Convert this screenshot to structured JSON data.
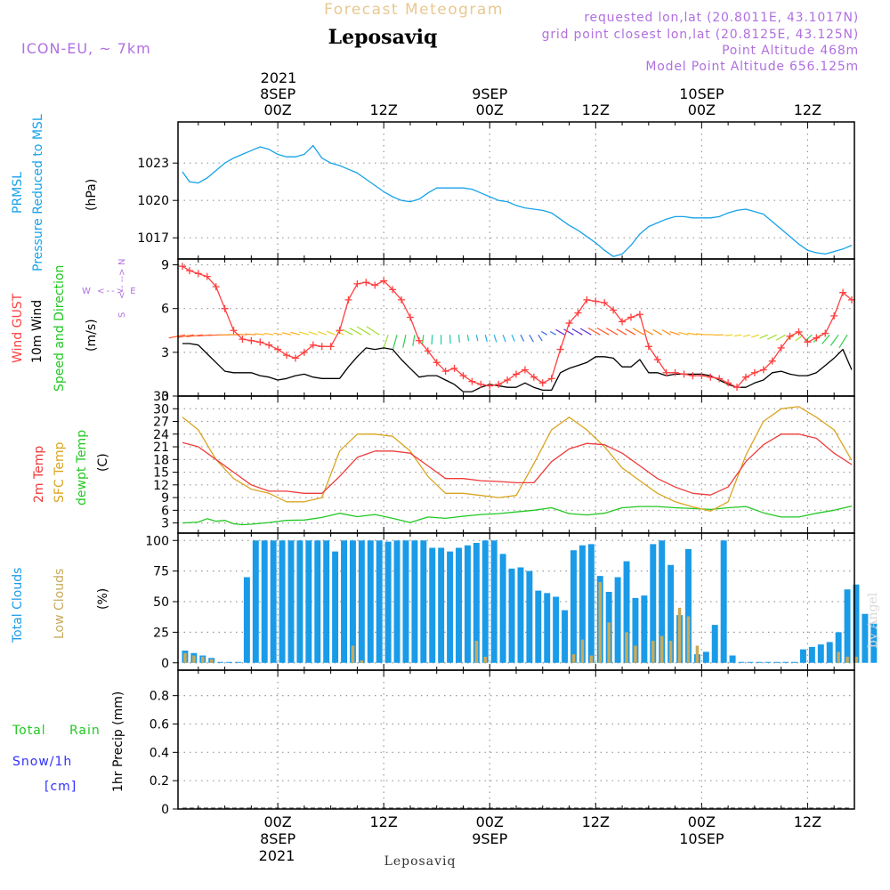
{
  "header": {
    "title": "Forecast Meteogram",
    "location": "Leposaviq",
    "model": "ICON-EU, ~ 7km",
    "requested": "requested lon,lat (20.8011E, 43.1017N)",
    "grid_point": "grid point closest lon,lat (20.8125E, 43.125N)",
    "point_altitude": "Point Altitude 468m",
    "model_altitude": "Model Point Altitude 656.125m",
    "watermark": "by Angel",
    "footer_location": "Leposaviq"
  },
  "time_axis": {
    "top_year": "2021",
    "bottom_year": "2021",
    "ticks": [
      {
        "hour": 0,
        "label": "00Z",
        "date": "8SEP"
      },
      {
        "hour": 12,
        "label": "12Z",
        "date": ""
      },
      {
        "hour": 24,
        "label": "00Z",
        "date": "9SEP"
      },
      {
        "hour": 36,
        "label": "12Z",
        "date": ""
      },
      {
        "hour": 48,
        "label": "00Z",
        "date": "10SEP"
      },
      {
        "hour": 60,
        "label": "12Z",
        "date": ""
      }
    ],
    "range_hours": [
      -11.3,
      65.3
    ]
  },
  "panels": {
    "pressure": {
      "label_1": "PRMSL",
      "label_2": "Pressure Reduced to MSL",
      "unit": "(hPa)",
      "color": "#17a2e8"
    },
    "wind": {
      "label_gust": "Wind GUST",
      "label_wind": "10m Wind",
      "label_dir": "Speed and Direction",
      "unit": "(m/s)",
      "compass_n": "N",
      "compass_we": "W <--> E",
      "compass_s": "S",
      "gust_color": "#ff4040",
      "wind_color": "#000000"
    },
    "temperature": {
      "label_t2m": "2m Temp",
      "label_sfc": "SFC Temp",
      "label_dew": "dewpt Temp",
      "unit": "(C)",
      "t2m_color": "#ee3b3b",
      "sfc_color": "#daa520",
      "dew_color": "#22c822"
    },
    "clouds": {
      "label_total": "Total Clouds",
      "label_low": "Low Clouds",
      "unit": "(%)",
      "total_color": "#1a9be8",
      "low_color": "#c8aa5a"
    },
    "precip": {
      "label_total": "Total",
      "label_rain": "Rain",
      "label_snow": "Snow/1h",
      "label_cm": "[cm]",
      "axis_label": "1hr Precip (mm)",
      "total_color": "#22c822",
      "snow_color": "#3030ff"
    }
  },
  "chart_data": [
    {
      "type": "line",
      "panel": "pressure",
      "ylabel": "(hPa)",
      "ylim": [
        1015.3,
        1026.3
      ],
      "yticks": [
        1017,
        1020,
        1023
      ],
      "grid": true,
      "series": [
        {
          "name": "PRMSL",
          "x": [
            -10.8,
            -10,
            -9,
            -8,
            -7,
            -6,
            -5,
            -4,
            -3,
            -2,
            -1,
            0,
            1,
            2,
            3,
            4,
            5,
            6,
            7,
            8,
            9,
            10,
            11,
            12,
            13,
            14,
            15,
            16,
            17,
            18,
            19,
            20,
            21,
            22,
            23,
            24,
            25,
            26,
            27,
            28,
            29,
            30,
            31,
            32,
            33,
            34,
            35,
            36,
            37,
            38,
            39,
            40,
            41,
            42,
            43,
            44,
            45,
            46,
            47,
            48,
            49,
            50,
            51,
            52,
            53,
            54,
            55,
            56,
            57,
            58,
            59,
            60,
            61,
            62,
            63,
            64,
            65
          ],
          "y": [
            1022.3,
            1021.5,
            1021.4,
            1021.8,
            1022.4,
            1023.0,
            1023.4,
            1023.7,
            1024.0,
            1024.3,
            1024.1,
            1023.7,
            1023.5,
            1023.5,
            1023.7,
            1024.4,
            1023.4,
            1023.0,
            1022.8,
            1022.5,
            1022.2,
            1021.7,
            1021.2,
            1020.7,
            1020.3,
            1020.0,
            1019.9,
            1020.1,
            1020.6,
            1021.0,
            1021.0,
            1021.0,
            1021.0,
            1020.9,
            1020.6,
            1020.3,
            1020.0,
            1019.9,
            1019.6,
            1019.4,
            1019.3,
            1019.2,
            1019.0,
            1018.5,
            1018.0,
            1017.6,
            1017.1,
            1016.6,
            1016.0,
            1015.5,
            1015.7,
            1016.4,
            1017.3,
            1017.9,
            1018.2,
            1018.5,
            1018.7,
            1018.7,
            1018.6,
            1018.6,
            1018.6,
            1018.7,
            1019.0,
            1019.2,
            1019.3,
            1019.1,
            1018.9,
            1018.3,
            1017.7,
            1017.1,
            1016.5,
            1016.0,
            1015.8,
            1015.7,
            1015.9,
            1016.1,
            1016.4
          ]
        }
      ]
    },
    {
      "type": "line",
      "panel": "wind",
      "ylabel": "(m/s)",
      "ylim": [
        0,
        9.4
      ],
      "yticks": [
        0,
        3,
        6,
        9
      ],
      "grid": true,
      "series": [
        {
          "name": "Wind GUST",
          "x": [
            -10.8,
            -10,
            -9,
            -8,
            -7,
            -6,
            -5,
            -4,
            -3,
            -2,
            -1,
            0,
            1,
            2,
            3,
            4,
            5,
            6,
            7,
            8,
            9,
            10,
            11,
            12,
            13,
            14,
            15,
            16,
            17,
            18,
            19,
            20,
            21,
            22,
            23,
            24,
            25,
            26,
            27,
            28,
            29,
            30,
            31,
            32,
            33,
            34,
            35,
            36,
            37,
            38,
            39,
            40,
            41,
            42,
            43,
            44,
            45,
            46,
            47,
            48,
            49,
            50,
            51,
            52,
            53,
            54,
            55,
            56,
            57,
            58,
            59,
            60,
            61,
            62,
            63,
            64,
            65
          ],
          "y": [
            8.9,
            8.6,
            8.4,
            8.2,
            7.5,
            6.0,
            4.5,
            3.9,
            3.8,
            3.7,
            3.5,
            3.2,
            2.8,
            2.6,
            3.0,
            3.5,
            3.4,
            3.4,
            4.5,
            6.6,
            7.7,
            7.8,
            7.6,
            7.9,
            7.3,
            6.6,
            5.4,
            3.8,
            3.1,
            2.3,
            1.7,
            1.9,
            1.4,
            1.0,
            0.8,
            0.7,
            0.8,
            1.1,
            1.5,
            1.8,
            1.3,
            0.9,
            1.2,
            3.2,
            5.0,
            5.7,
            6.6,
            6.5,
            6.4,
            5.9,
            5.1,
            5.4,
            5.6,
            3.4,
            2.5,
            1.6,
            1.6,
            1.5,
            1.4,
            1.4,
            1.3,
            1.2,
            0.9,
            0.6,
            1.3,
            1.6,
            1.8,
            2.4,
            3.3,
            4.1,
            4.4,
            3.7,
            4.0,
            4.3,
            5.5,
            7.1,
            6.6
          ]
        },
        {
          "name": "10m Wind",
          "x": [
            -10.8,
            -10,
            -9,
            -8,
            -7,
            -6,
            -5,
            -4,
            -3,
            -2,
            -1,
            0,
            1,
            2,
            3,
            4,
            5,
            6,
            7,
            8,
            9,
            10,
            11,
            12,
            13,
            14,
            15,
            16,
            17,
            18,
            19,
            20,
            21,
            22,
            23,
            24,
            25,
            26,
            27,
            28,
            29,
            30,
            31,
            32,
            33,
            34,
            35,
            36,
            37,
            38,
            39,
            40,
            41,
            42,
            43,
            44,
            45,
            46,
            47,
            48,
            49,
            50,
            51,
            52,
            53,
            54,
            55,
            56,
            57,
            58,
            59,
            60,
            61,
            62,
            63,
            64,
            65
          ],
          "y": [
            3.6,
            3.6,
            3.5,
            2.9,
            2.3,
            1.7,
            1.6,
            1.6,
            1.6,
            1.4,
            1.3,
            1.1,
            1.2,
            1.4,
            1.5,
            1.3,
            1.2,
            1.2,
            1.2,
            2.0,
            2.7,
            3.3,
            3.2,
            3.3,
            3.2,
            2.5,
            1.9,
            1.3,
            1.4,
            1.4,
            1.1,
            0.8,
            0.3,
            0.3,
            0.6,
            0.8,
            0.7,
            0.6,
            0.6,
            0.9,
            0.6,
            0.4,
            0.4,
            1.6,
            1.9,
            2.1,
            2.3,
            2.7,
            2.7,
            2.6,
            2.0,
            2.0,
            2.5,
            1.6,
            1.6,
            1.4,
            1.5,
            1.5,
            1.5,
            1.5,
            1.4,
            1.1,
            0.8,
            0.6,
            0.6,
            0.9,
            1.1,
            1.6,
            1.7,
            1.5,
            1.4,
            1.4,
            1.6,
            2.1,
            2.6,
            3.2,
            1.8
          ]
        }
      ]
    },
    {
      "type": "line",
      "panel": "temperature",
      "ylabel": "(C)",
      "ylim": [
        0.6,
        33
      ],
      "yticks": [
        3,
        6,
        9,
        12,
        15,
        18,
        21,
        24,
        27,
        30,
        33
      ],
      "grid": true,
      "series": [
        {
          "name": "2m Temp",
          "x": [
            -10.8,
            -9,
            -7,
            -5,
            -3,
            -1,
            1,
            3,
            5,
            7,
            9,
            11,
            13,
            15,
            17,
            19,
            21,
            23,
            25,
            27,
            29,
            31,
            33,
            35,
            37,
            39,
            41,
            43,
            45,
            47,
            49,
            51,
            53,
            55,
            57,
            59,
            61,
            63,
            65
          ],
          "y": [
            22,
            21,
            18,
            15,
            12,
            10.5,
            10.5,
            10,
            10,
            14,
            18.5,
            20,
            20,
            19.5,
            16.5,
            13.5,
            13.5,
            13,
            12.8,
            12.5,
            12.5,
            17.5,
            20.5,
            21.8,
            21.5,
            19.5,
            16.5,
            13.5,
            11.5,
            10,
            9.6,
            11.5,
            17.5,
            21.5,
            24,
            24,
            23,
            19.5,
            16.8
          ]
        },
        {
          "name": "SFC Temp",
          "x": [
            -10.8,
            -9,
            -7,
            -5,
            -3,
            -1,
            1,
            3,
            5,
            7,
            9,
            11,
            13,
            15,
            17,
            19,
            21,
            23,
            25,
            27,
            29,
            31,
            33,
            35,
            37,
            39,
            41,
            43,
            45,
            47,
            49,
            51,
            53,
            55,
            57,
            59,
            61,
            63,
            65
          ],
          "y": [
            28,
            25,
            18,
            13.5,
            11,
            10,
            8,
            8,
            9,
            20,
            24,
            24,
            23.5,
            20,
            14,
            10,
            10,
            9.5,
            9,
            9.5,
            17,
            25,
            28,
            25,
            21,
            16,
            13,
            10,
            8,
            6.8,
            5.8,
            8,
            19,
            27,
            30,
            30.5,
            28,
            25,
            17.8
          ]
        },
        {
          "name": "dewpt Temp",
          "x": [
            -10.8,
            -9,
            -8,
            -7,
            -6,
            -5,
            -4,
            -3,
            -1,
            1,
            3,
            5,
            7,
            9,
            11,
            13,
            15,
            17,
            19,
            21,
            23,
            25,
            27,
            29,
            31,
            33,
            35,
            37,
            39,
            41,
            43,
            45,
            47,
            49,
            51,
            53,
            55,
            57,
            59,
            61,
            63,
            65
          ],
          "y": [
            3,
            3.2,
            4,
            3.4,
            3.6,
            2.8,
            2.6,
            2.7,
            3.1,
            3.6,
            3.7,
            4.3,
            5.3,
            4.5,
            5,
            4.1,
            3.1,
            4.4,
            4.1,
            4.6,
            5,
            5.2,
            5.6,
            6,
            6.6,
            5.2,
            4.9,
            5.3,
            6.6,
            6.9,
            6.9,
            6.6,
            6.4,
            6.2,
            6.6,
            6.9,
            5.4,
            4.4,
            4.4,
            5.3,
            6,
            7
          ]
        }
      ]
    },
    {
      "type": "bar",
      "panel": "clouds",
      "ylabel": "(%)",
      "ylim": [
        -6,
        106
      ],
      "yticks": [
        0,
        25,
        50,
        75,
        100
      ],
      "grid": true,
      "x_start_hour": -10.5,
      "x_step_hours": 1,
      "series": [
        {
          "name": "Total Clouds",
          "values": [
            10,
            8,
            6,
            4,
            0,
            0,
            0,
            70,
            100,
            100,
            100,
            100,
            100,
            100,
            100,
            100,
            100,
            91,
            100,
            100,
            100,
            100,
            100,
            99,
            100,
            100,
            100,
            100,
            94,
            94,
            91,
            94,
            96,
            98,
            100,
            100,
            89,
            77,
            78,
            75,
            59,
            57,
            54,
            43,
            92,
            96,
            97,
            71,
            58,
            70,
            83,
            53,
            55,
            97,
            100,
            80,
            39,
            93,
            7,
            9,
            31,
            100,
            6,
            0,
            0,
            0,
            0,
            0,
            0,
            0,
            11,
            13,
            15,
            17,
            25,
            60,
            64,
            40,
            32
          ]
        },
        {
          "name": "Low Clouds",
          "values": [
            8,
            6,
            5,
            3,
            0,
            0,
            0,
            0,
            0,
            0,
            0,
            0,
            0,
            0,
            0,
            0,
            0,
            0,
            0,
            14,
            2,
            0,
            0,
            0,
            0,
            0,
            0,
            0,
            0,
            0,
            0,
            0,
            0,
            18,
            5,
            0,
            0,
            0,
            0,
            0,
            0,
            0,
            0,
            0,
            7,
            19,
            6,
            66,
            33,
            0,
            25,
            14,
            0,
            18,
            22,
            18,
            45,
            38,
            14,
            0,
            0,
            0,
            0,
            0,
            0,
            0,
            0,
            0,
            0,
            0,
            0,
            0,
            0,
            0,
            9,
            5,
            5,
            0,
            0
          ]
        }
      ]
    },
    {
      "type": "line",
      "panel": "precip",
      "ylabel": "1hr Precip (mm)",
      "ylim": [
        0,
        0.98
      ],
      "yticks": [
        0,
        0.2,
        0.4,
        0.6,
        0.8
      ],
      "grid": true,
      "series": [
        {
          "name": "Total Rain",
          "x": [
            -10.8,
            65
          ],
          "y": [
            0,
            0
          ]
        }
      ]
    }
  ]
}
